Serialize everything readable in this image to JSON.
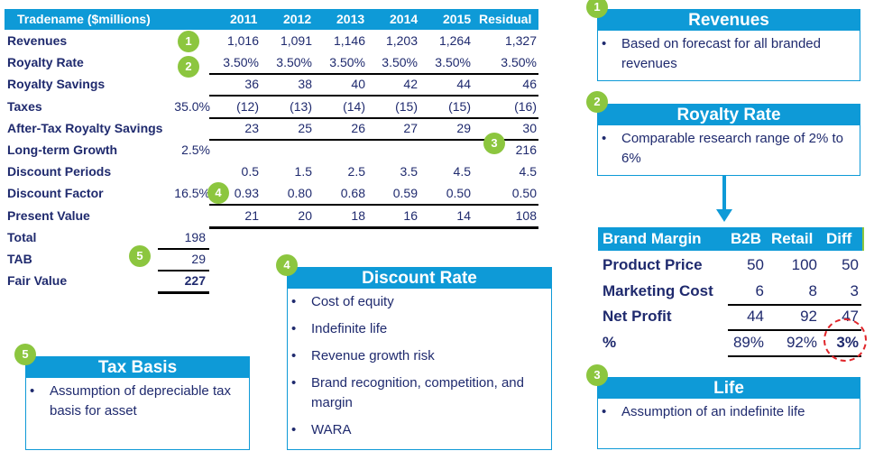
{
  "table": {
    "header": [
      "Tradename ($millions)",
      "2011",
      "2012",
      "2013",
      "2014",
      "2015",
      "Residual"
    ],
    "rows": [
      {
        "label": "Revenues",
        "param": "",
        "values": [
          "1,016",
          "1,091",
          "1,146",
          "1,203",
          "1,264",
          "1,327"
        ]
      },
      {
        "label": "Royalty Rate",
        "param": "",
        "values": [
          "3.50%",
          "3.50%",
          "3.50%",
          "3.50%",
          "3.50%",
          "3.50%"
        ]
      },
      {
        "label": "Royalty Savings",
        "param": "",
        "values": [
          "36",
          "38",
          "40",
          "42",
          "44",
          "46"
        ]
      },
      {
        "label": "Taxes",
        "param": "35.0%",
        "values": [
          "(12)",
          "(13)",
          "(14)",
          "(15)",
          "(15)",
          "(16)"
        ]
      },
      {
        "label": "After-Tax Royalty Savings",
        "param": "",
        "values": [
          "23",
          "25",
          "26",
          "27",
          "29",
          "30"
        ]
      },
      {
        "label": "Long-term Growth",
        "param": "2.5%",
        "values": [
          "",
          "",
          "",
          "",
          "",
          "216"
        ]
      },
      {
        "label": "Discount Periods",
        "param": "",
        "values": [
          "0.5",
          "1.5",
          "2.5",
          "3.5",
          "4.5",
          "4.5"
        ]
      },
      {
        "label": "Discount Factor",
        "param": "16.5%",
        "values": [
          "0.93",
          "0.80",
          "0.68",
          "0.59",
          "0.50",
          "0.50"
        ]
      },
      {
        "label": "Present Value",
        "param": "",
        "values": [
          "21",
          "20",
          "18",
          "16",
          "14",
          "108"
        ]
      }
    ],
    "summary": [
      {
        "label": "Total",
        "value": "198"
      },
      {
        "label": "TAB",
        "value": "29"
      },
      {
        "label": "Fair Value",
        "value": "227"
      }
    ]
  },
  "badges": [
    "1",
    "2",
    "3",
    "4",
    "5"
  ],
  "boxes": {
    "revenues": {
      "num": "1",
      "title": "Revenues",
      "items": [
        "Based on forecast for all branded revenues"
      ]
    },
    "royalty": {
      "num": "2",
      "title": "Royalty Rate",
      "items": [
        "Comparable research range of 2% to 6%"
      ]
    },
    "life": {
      "num": "3",
      "title": "Life",
      "items": [
        "Assumption of an indefinite life"
      ]
    },
    "discount": {
      "num": "4",
      "title": "Discount Rate",
      "items": [
        "Cost of equity",
        "Indefinite life",
        "Revenue growth risk",
        "Brand recognition, competition, and margin",
        "WARA"
      ]
    },
    "tax": {
      "num": "5",
      "title": "Tax Basis",
      "items": [
        "Assumption of depreciable tax basis for asset"
      ]
    }
  },
  "brand_margin": {
    "header": [
      "Brand Margin",
      "B2B",
      "Retail",
      "Diff"
    ],
    "rows": [
      {
        "label": "Product Price",
        "values": [
          "50",
          "100",
          "50"
        ]
      },
      {
        "label": "Marketing Cost",
        "values": [
          "6",
          "8",
          "3"
        ]
      },
      {
        "label": "Net Profit",
        "values": [
          "44",
          "92",
          "47"
        ]
      },
      {
        "label": "%",
        "values": [
          "89%",
          "92%",
          "3%"
        ]
      }
    ]
  },
  "colors": {
    "header": "#0e9ad7",
    "badge": "#8cc63f",
    "text": "#1f2a6e",
    "highlight_circle": "#e0262b"
  }
}
